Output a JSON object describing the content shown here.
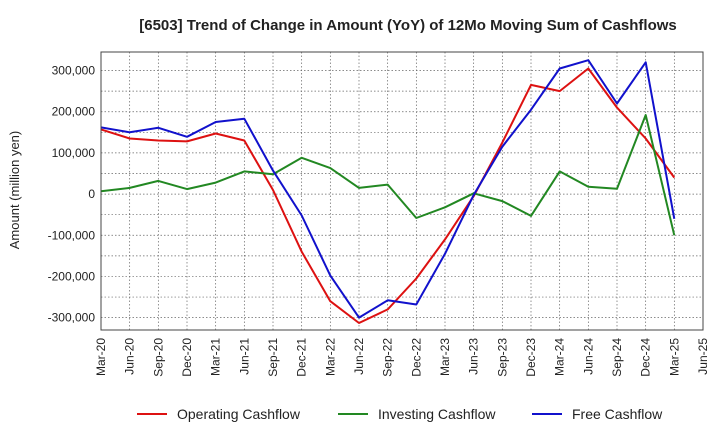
{
  "colors": {
    "operating": "#dd1111",
    "investing": "#228822",
    "free": "#1111cc",
    "grid": "#666666",
    "background": "#ffffff"
  },
  "chart_data": {
    "type": "line",
    "title": "[6503]  Trend of Change in Amount (YoY) of 12Mo Moving Sum of Cashflows",
    "xlabel": "",
    "ylabel": "Amount (million yen)",
    "ylim": [
      -330000,
      345000
    ],
    "yticks": [
      -300000,
      -200000,
      -100000,
      0,
      100000,
      200000,
      300000
    ],
    "ytick_labels": [
      "-300,000",
      "-200,000",
      "-100,000",
      "0",
      "100,000",
      "200,000",
      "300,000"
    ],
    "grid": true,
    "legend": "bottom",
    "categories": [
      "Mar-20",
      "Jun-20",
      "Sep-20",
      "Dec-20",
      "Mar-21",
      "Jun-21",
      "Sep-21",
      "Dec-21",
      "Mar-22",
      "Jun-22",
      "Sep-22",
      "Dec-22",
      "Mar-23",
      "Jun-23",
      "Sep-23",
      "Dec-23",
      "Mar-24",
      "Jun-24",
      "Sep-24",
      "Dec-24",
      "Mar-25",
      "Jun-25"
    ],
    "series": [
      {
        "name": "Operating Cashflow",
        "color_key": "operating",
        "values": [
          157000,
          135000,
          130000,
          128000,
          147000,
          130000,
          10000,
          -140000,
          -260000,
          -313000,
          -280000,
          -205000,
          -110000,
          -5000,
          125000,
          265000,
          250000,
          305000,
          210000,
          135000,
          40000,
          null
        ]
      },
      {
        "name": "Investing Cashflow",
        "color_key": "investing",
        "values": [
          7000,
          15000,
          32000,
          12000,
          28000,
          55000,
          48000,
          88000,
          63000,
          15000,
          23000,
          -58000,
          -32000,
          2000,
          -17000,
          -53000,
          55000,
          18000,
          13000,
          192000,
          -100000,
          null
        ]
      },
      {
        "name": "Free Cashflow",
        "color_key": "free",
        "values": [
          162000,
          150000,
          161000,
          139000,
          175000,
          183000,
          57000,
          -52000,
          -198000,
          -300000,
          -258000,
          -268000,
          -145000,
          -2000,
          115000,
          205000,
          305000,
          325000,
          220000,
          320000,
          -60000,
          null
        ]
      }
    ]
  }
}
